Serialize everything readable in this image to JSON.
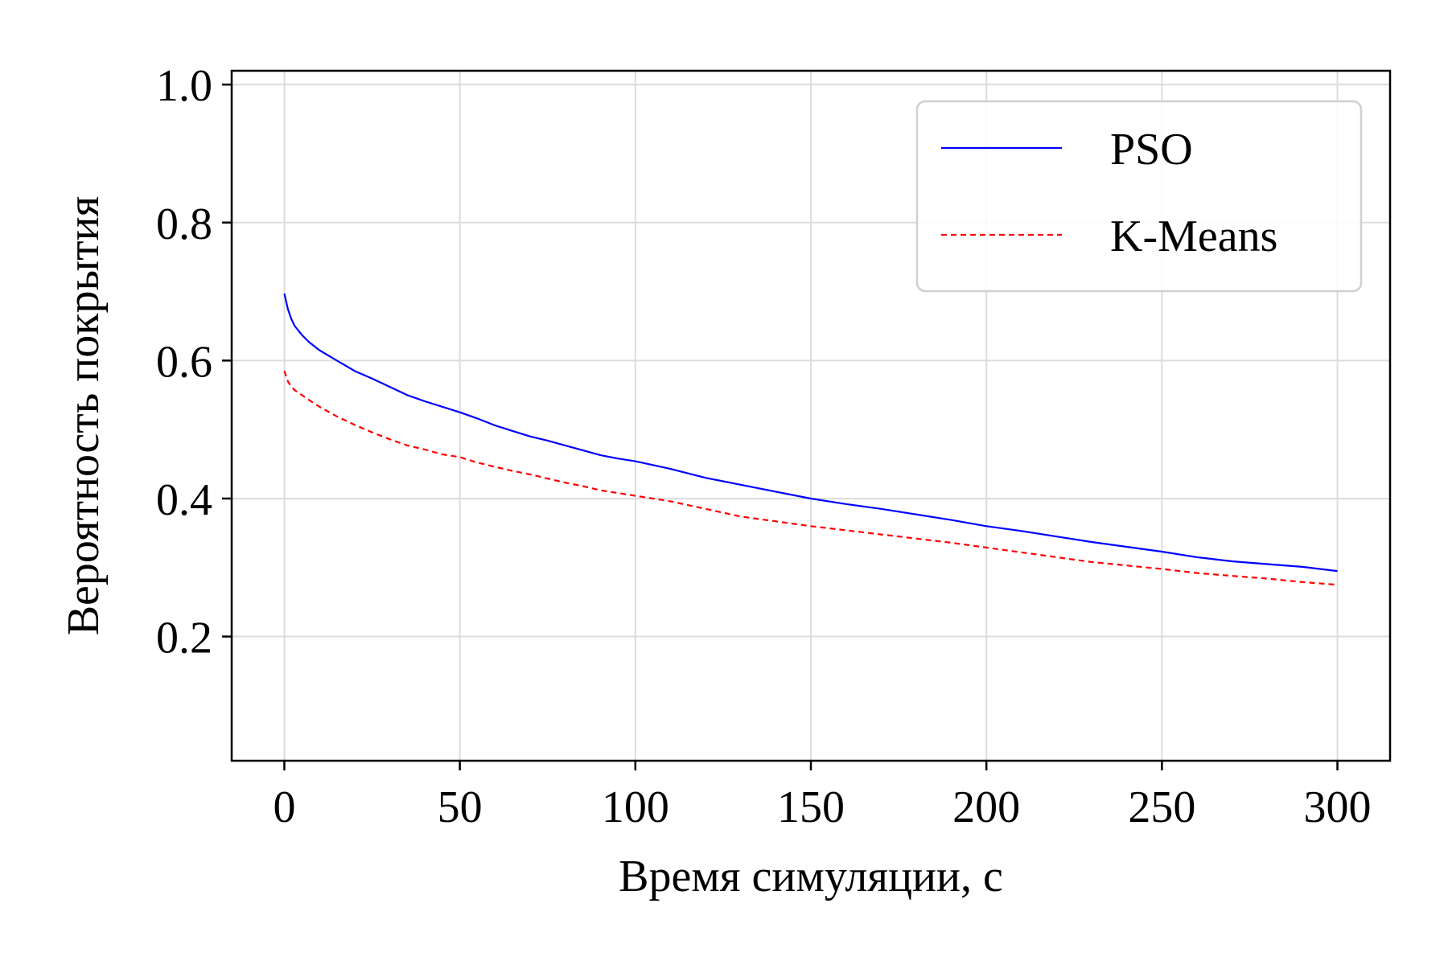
{
  "chart_data": {
    "type": "line",
    "xlabel": "Время симуляции, с",
    "ylabel": "Вероятность покрытия",
    "xlim": [
      -15,
      315
    ],
    "ylim": [
      0.02,
      1.02
    ],
    "xticks": [
      0,
      50,
      100,
      150,
      200,
      250,
      300
    ],
    "xtick_labels": [
      "0",
      "50",
      "100",
      "150",
      "200",
      "250",
      "300"
    ],
    "yticks": [
      0.2,
      0.4,
      0.6,
      0.8,
      1.0
    ],
    "ytick_labels": [
      "0.2",
      "0.4",
      "0.6",
      "0.8",
      "1.0"
    ],
    "grid": true,
    "legend_position": "top-right",
    "series": [
      {
        "name": "PSO",
        "color": "#0000ff",
        "style": "solid",
        "x": [
          0,
          1,
          2,
          3,
          5,
          7,
          10,
          15,
          20,
          25,
          30,
          35,
          40,
          45,
          50,
          55,
          60,
          65,
          70,
          75,
          80,
          85,
          90,
          95,
          100,
          110,
          120,
          130,
          140,
          150,
          160,
          170,
          180,
          190,
          200,
          210,
          220,
          230,
          240,
          250,
          260,
          270,
          280,
          290,
          300
        ],
        "y": [
          0.697,
          0.675,
          0.66,
          0.65,
          0.637,
          0.627,
          0.615,
          0.6,
          0.585,
          0.574,
          0.562,
          0.55,
          0.541,
          0.533,
          0.525,
          0.516,
          0.506,
          0.498,
          0.49,
          0.484,
          0.477,
          0.47,
          0.463,
          0.458,
          0.454,
          0.443,
          0.43,
          0.42,
          0.41,
          0.4,
          0.392,
          0.385,
          0.377,
          0.369,
          0.36,
          0.353,
          0.345,
          0.337,
          0.33,
          0.323,
          0.315,
          0.309,
          0.305,
          0.301,
          0.295
        ]
      },
      {
        "name": "K-Means",
        "color": "#ff0000",
        "style": "dashed",
        "x": [
          0,
          1,
          2,
          3,
          5,
          7,
          10,
          15,
          20,
          25,
          30,
          35,
          40,
          45,
          50,
          55,
          60,
          65,
          70,
          75,
          80,
          85,
          90,
          95,
          100,
          110,
          120,
          130,
          140,
          150,
          160,
          170,
          180,
          190,
          200,
          210,
          220,
          230,
          240,
          250,
          260,
          270,
          280,
          290,
          300
        ],
        "y": [
          0.585,
          0.57,
          0.562,
          0.557,
          0.55,
          0.543,
          0.533,
          0.519,
          0.507,
          0.496,
          0.486,
          0.477,
          0.471,
          0.464,
          0.46,
          0.452,
          0.446,
          0.44,
          0.435,
          0.429,
          0.423,
          0.418,
          0.412,
          0.408,
          0.404,
          0.396,
          0.385,
          0.374,
          0.367,
          0.36,
          0.354,
          0.348,
          0.342,
          0.336,
          0.329,
          0.322,
          0.315,
          0.308,
          0.303,
          0.298,
          0.292,
          0.288,
          0.284,
          0.279,
          0.275
        ]
      }
    ]
  }
}
